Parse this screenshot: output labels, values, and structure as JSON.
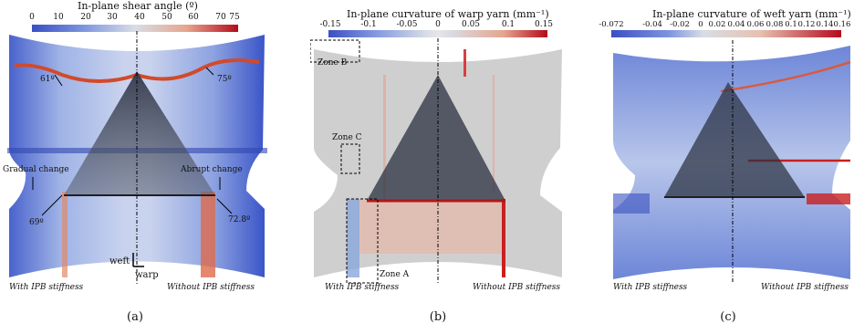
{
  "panel_a": {
    "title": "In-plane shear angle (º)",
    "ticks": [
      "0",
      "10",
      "20",
      "30",
      "40",
      "50",
      "60",
      "70",
      "75"
    ],
    "annotations": {
      "a61": "61º",
      "a75": "75º",
      "gradual": "Gradual change",
      "abrupt": "Abrupt change",
      "a69": "69º",
      "a728": "72.8º"
    },
    "axis_weft": "weft",
    "axis_warp": "warp",
    "left_label": "With IPB stiffness",
    "right_label": "Without IPB stiffness",
    "caption": "(a)",
    "colors": {
      "low": "#3a4fc4",
      "mid": "#d9dde6",
      "high": "#b40a1c"
    }
  },
  "panel_b": {
    "title": "In-plane curvature of warp yarn (mm⁻¹)",
    "ticks": [
      "-0.15",
      "-0.1",
      "-0.05",
      "0",
      "0.05",
      "0.1",
      "0.15"
    ],
    "zones": {
      "a": "Zone A",
      "b": "Zone B",
      "c": "Zone C"
    },
    "left_label": "With IPB stiffness",
    "right_label": "Without IPB stiffness",
    "caption": "(b)"
  },
  "panel_c": {
    "title": "In-plane curvature of weft yarn (mm⁻¹)",
    "ticks": [
      "-0.072",
      "-0.04",
      "-0.02",
      "0",
      "0.02",
      "0.04",
      "0.06",
      "0.08",
      "0.1",
      "0.12",
      "0.14",
      "0.16"
    ],
    "left_label": "With IPB stiffness",
    "right_label": "Without IPB stiffness",
    "caption": "(c)"
  }
}
